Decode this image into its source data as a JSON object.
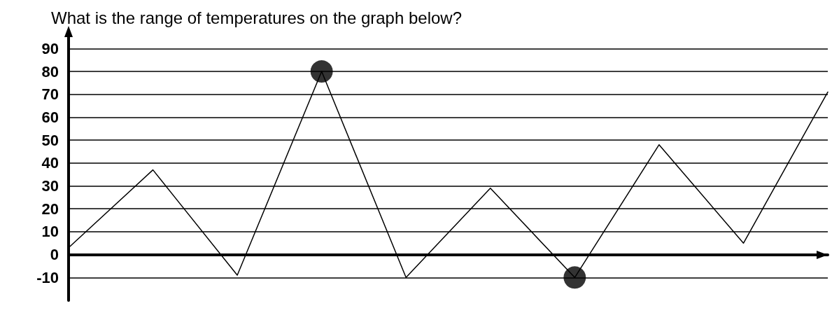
{
  "chart_data": {
    "type": "line",
    "title": "What is the range of temperatures on the graph below?",
    "categories": [
      null,
      null,
      null,
      null,
      null,
      null,
      null,
      null,
      null,
      null
    ],
    "series": [
      {
        "color": "#000000",
        "marker": "none",
        "values": [
          3,
          37,
          -9,
          80,
          -10,
          29,
          -10,
          48,
          5,
          71
        ]
      },
      {
        "type": "scatter",
        "color": "#000000",
        "marker": "circle",
        "values": [
          null,
          null,
          null,
          80,
          null,
          null,
          -10,
          null,
          null,
          null
        ]
      }
    ],
    "ylim": [
      -20,
      95
    ],
    "yticks": [
      -10,
      0,
      10,
      20,
      30,
      40,
      50,
      60,
      70,
      80,
      90
    ],
    "grid": "y"
  }
}
